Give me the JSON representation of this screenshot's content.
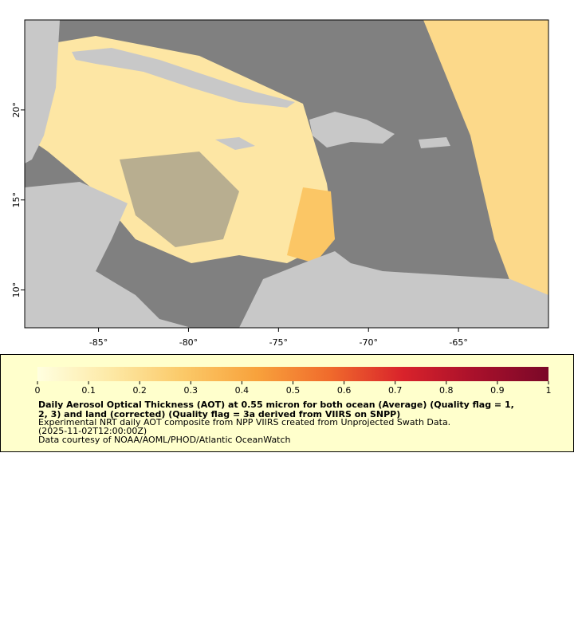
{
  "map": {
    "xlim": [
      -89.1,
      -60
    ],
    "ylim": [
      7.9,
      25
    ],
    "xticks": [
      {
        "value": -85,
        "label": "-85°"
      },
      {
        "value": -80,
        "label": "-80°"
      },
      {
        "value": -75,
        "label": "-75°"
      },
      {
        "value": -70,
        "label": "-70°"
      },
      {
        "value": -65,
        "label": "-65°"
      }
    ],
    "yticks": [
      {
        "value": 10,
        "label": "10°"
      },
      {
        "value": 15,
        "label": "15°"
      },
      {
        "value": 20,
        "label": "20°"
      }
    ]
  },
  "colorbar": {
    "range": [
      0,
      1
    ],
    "ticks": [
      0,
      0.1,
      0.2,
      0.3,
      0.4,
      0.5,
      0.6,
      0.7,
      0.8,
      0.9,
      1
    ],
    "colors": [
      "#ffffe0",
      "#fde9a6",
      "#fbc968",
      "#f8a23c",
      "#f06b2c",
      "#d9232b",
      "#a8102b",
      "#7a0828"
    ]
  },
  "caption": {
    "title": [
      "Daily Aerosol Optical Thickness (AOT) at 0.55 micron for both ocean (Average) (Quality flag = 1,",
      "2, 3) and land (corrected) (Quality flag = 3a derived from VIIRS on SNPP)"
    ],
    "lines": [
      "Experimental NRT daily AOT composite from NPP VIIRS created from Unprojected Swath Data.",
      "(2025-11-02T12:00:00Z)",
      "Data courtesy of NOAA/AOML/PHOD/Atlantic OceanWatch"
    ]
  }
}
